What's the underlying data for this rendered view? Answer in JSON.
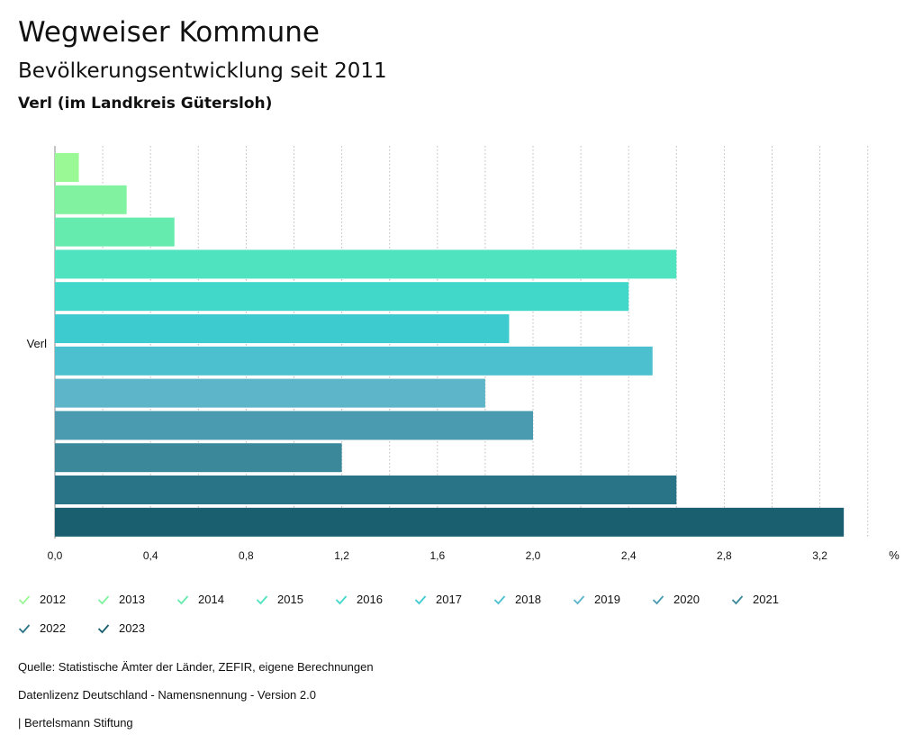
{
  "header": {
    "title": "Wegweiser Kommune",
    "subtitle": "Bevölkerungsentwicklung seit 2011",
    "region": "Verl (im Landkreis Gütersloh)"
  },
  "chart_data": {
    "type": "bar",
    "orientation": "horizontal",
    "category": "Verl",
    "unit_label": "%",
    "xlim": [
      0,
      3.3
    ],
    "x_ticks": [
      "0,0",
      "0,4",
      "0,8",
      "1,2",
      "1,6",
      "2,0",
      "2,4",
      "2,8",
      "3,2"
    ],
    "x_tick_values": [
      0,
      0.4,
      0.8,
      1.2,
      1.6,
      2.0,
      2.4,
      2.8,
      3.2
    ],
    "grid": true,
    "series": [
      {
        "name": "2012",
        "value": 0.1,
        "color": "#9AF895"
      },
      {
        "name": "2013",
        "value": 0.3,
        "color": "#81F3A0"
      },
      {
        "name": "2014",
        "value": 0.5,
        "color": "#66EBAF"
      },
      {
        "name": "2015",
        "value": 2.6,
        "color": "#50E3C0"
      },
      {
        "name": "2016",
        "value": 2.4,
        "color": "#41D8C9"
      },
      {
        "name": "2017",
        "value": 1.9,
        "color": "#3ECBD0"
      },
      {
        "name": "2018",
        "value": 2.5,
        "color": "#4DC0CF"
      },
      {
        "name": "2019",
        "value": 1.8,
        "color": "#5CB5C8"
      },
      {
        "name": "2020",
        "value": 2.0,
        "color": "#4A9BB0"
      },
      {
        "name": "2021",
        "value": 1.2,
        "color": "#3A889A"
      },
      {
        "name": "2022",
        "value": 2.6,
        "color": "#2A7487"
      },
      {
        "name": "2023",
        "value": 3.3,
        "color": "#1A5F70"
      }
    ]
  },
  "footer": {
    "source": "Quelle: Statistische Ämter der Länder, ZEFIR, eigene Berechnungen",
    "license": "Datenlizenz Deutschland - Namensnennung - Version 2.0",
    "publisher": "| Bertelsmann Stiftung"
  }
}
